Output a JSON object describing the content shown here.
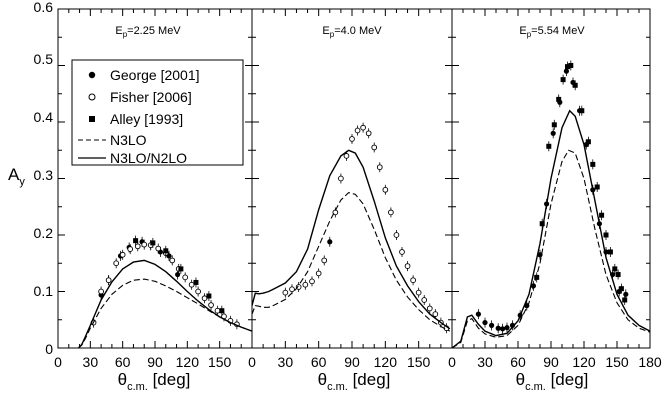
{
  "figure": {
    "ylabel_main": "A",
    "ylabel_sub": "y",
    "xlabel_main": "θ",
    "xlabel_sub": "c.m.",
    "xlabel_unit": " [deg]",
    "y_ticks": [
      "0",
      "0.1",
      "0.2",
      "0.3",
      "0.4",
      "0.5",
      "0.6"
    ],
    "legend": [
      {
        "label": "George [2001]",
        "marker": "filled-circle"
      },
      {
        "label": "Fisher [2006]",
        "marker": "open-circle"
      },
      {
        "label": "Alley [1993]",
        "marker": "filled-square"
      },
      {
        "label": "N3LO",
        "marker": "dashed-line"
      },
      {
        "label": "N3LO/N2LO",
        "marker": "solid-line"
      }
    ]
  },
  "chart_data": [
    {
      "type": "scatter+line",
      "title_main": "E",
      "title_sub": "p",
      "title_rest": "=2.25 MeV",
      "xlim": [
        0,
        180
      ],
      "ylim": [
        0,
        0.6
      ],
      "x_ticks": [
        "0",
        "30",
        "60",
        "90",
        "120",
        "150"
      ],
      "series": [
        {
          "name": "George [2001]",
          "marker": "filled-circle",
          "points": [
            [
              40,
              0.094
            ],
            [
              47,
              0.12
            ],
            [
              58,
              0.163
            ],
            [
              66,
              0.178
            ],
            [
              78,
              0.188
            ],
            [
              86,
              0.182
            ],
            [
              95,
              0.17
            ],
            [
              103,
              0.163
            ],
            [
              111,
              0.13
            ]
          ]
        },
        {
          "name": "Fisher [2006]",
          "marker": "open-circle",
          "points": [
            [
              33,
              0.045
            ],
            [
              40,
              0.1
            ],
            [
              47,
              0.12
            ],
            [
              54,
              0.15
            ],
            [
              60,
              0.165
            ],
            [
              67,
              0.175
            ],
            [
              74,
              0.18
            ],
            [
              80,
              0.183
            ],
            [
              86,
              0.182
            ],
            [
              93,
              0.176
            ],
            [
              100,
              0.168
            ],
            [
              106,
              0.155
            ],
            [
              112,
              0.14
            ],
            [
              118,
              0.125
            ],
            [
              124,
              0.112
            ],
            [
              130,
              0.1
            ],
            [
              136,
              0.088
            ],
            [
              142,
              0.076
            ],
            [
              148,
              0.066
            ],
            [
              154,
              0.056
            ],
            [
              160,
              0.048
            ],
            [
              166,
              0.042
            ]
          ]
        },
        {
          "name": "Alley [1993]",
          "marker": "filled-square",
          "points": [
            [
              72,
              0.19
            ],
            [
              88,
              0.186
            ],
            [
              100,
              0.172
            ],
            [
              114,
              0.14
            ],
            [
              128,
              0.116
            ],
            [
              140,
              0.092
            ],
            [
              152,
              0.066
            ]
          ]
        },
        {
          "name": "N3LO",
          "style": "dashed",
          "points": [
            [
              19,
              0
            ],
            [
              22,
              0.005
            ],
            [
              25,
              0.015
            ],
            [
              30,
              0.035
            ],
            [
              40,
              0.07
            ],
            [
              50,
              0.095
            ],
            [
              60,
              0.111
            ],
            [
              70,
              0.12
            ],
            [
              80,
              0.122
            ],
            [
              90,
              0.118
            ],
            [
              100,
              0.11
            ],
            [
              110,
              0.1
            ],
            [
              120,
              0.089
            ],
            [
              130,
              0.078
            ],
            [
              140,
              0.066
            ],
            [
              150,
              0.055
            ],
            [
              160,
              0.045
            ],
            [
              170,
              0.037
            ],
            [
              180,
              0.03
            ]
          ]
        },
        {
          "name": "N3LO/N2LO",
          "style": "solid",
          "points": [
            [
              19,
              0
            ],
            [
              22,
              0.006
            ],
            [
              25,
              0.018
            ],
            [
              30,
              0.04
            ],
            [
              40,
              0.085
            ],
            [
              50,
              0.117
            ],
            [
              60,
              0.14
            ],
            [
              70,
              0.152
            ],
            [
              80,
              0.155
            ],
            [
              90,
              0.148
            ],
            [
              100,
              0.135
            ],
            [
              110,
              0.118
            ],
            [
              120,
              0.1
            ],
            [
              130,
              0.083
            ],
            [
              140,
              0.068
            ],
            [
              150,
              0.055
            ],
            [
              160,
              0.045
            ],
            [
              170,
              0.037
            ],
            [
              180,
              0.03
            ]
          ]
        }
      ]
    },
    {
      "type": "scatter+line",
      "title_main": "E",
      "title_sub": "p",
      "title_rest": "=4.0 MeV",
      "xlim": [
        0,
        180
      ],
      "ylim": [
        0,
        0.6
      ],
      "x_ticks": [
        "0",
        "30",
        "60",
        "90",
        "120",
        "150"
      ],
      "series": [
        {
          "name": "George [2001]",
          "marker": "filled-circle",
          "points": [
            [
              70,
              0.188
            ]
          ]
        },
        {
          "name": "Fisher [2006]",
          "marker": "open-circle",
          "points": [
            [
              30,
              0.098
            ],
            [
              36,
              0.104
            ],
            [
              42,
              0.108
            ],
            [
              48,
              0.112
            ],
            [
              54,
              0.118
            ],
            [
              60,
              0.132
            ],
            [
              65,
              0.155
            ],
            [
              75,
              0.24
            ],
            [
              80,
              0.3
            ],
            [
              85,
              0.34
            ],
            [
              90,
              0.37
            ],
            [
              95,
              0.385
            ],
            [
              100,
              0.39
            ],
            [
              105,
              0.38
            ],
            [
              110,
              0.355
            ],
            [
              115,
              0.32
            ],
            [
              120,
              0.28
            ],
            [
              125,
              0.24
            ],
            [
              130,
              0.2
            ],
            [
              135,
              0.17
            ],
            [
              140,
              0.145
            ],
            [
              145,
              0.12
            ],
            [
              150,
              0.098
            ],
            [
              155,
              0.085
            ],
            [
              160,
              0.07
            ],
            [
              165,
              0.06
            ],
            [
              170,
              0.045
            ],
            [
              175,
              0.035
            ]
          ]
        },
        {
          "name": "N3LO",
          "style": "dashed",
          "points": [
            [
              0,
              0.06
            ],
            [
              3,
              0.075
            ],
            [
              6,
              0.074
            ],
            [
              10,
              0.072
            ],
            [
              15,
              0.072
            ],
            [
              20,
              0.076
            ],
            [
              30,
              0.086
            ],
            [
              40,
              0.105
            ],
            [
              50,
              0.135
            ],
            [
              60,
              0.18
            ],
            [
              70,
              0.225
            ],
            [
              80,
              0.262
            ],
            [
              87,
              0.275
            ],
            [
              93,
              0.272
            ],
            [
              100,
              0.255
            ],
            [
              110,
              0.21
            ],
            [
              120,
              0.16
            ],
            [
              130,
              0.12
            ],
            [
              140,
              0.09
            ],
            [
              150,
              0.068
            ],
            [
              160,
              0.05
            ],
            [
              170,
              0.038
            ],
            [
              178,
              0.03
            ]
          ]
        },
        {
          "name": "N3LO/N2LO",
          "style": "solid",
          "points": [
            [
              0,
              0.075
            ],
            [
              3,
              0.097
            ],
            [
              6,
              0.096
            ],
            [
              10,
              0.097
            ],
            [
              15,
              0.1
            ],
            [
              20,
              0.105
            ],
            [
              30,
              0.115
            ],
            [
              40,
              0.135
            ],
            [
              50,
              0.175
            ],
            [
              60,
              0.245
            ],
            [
              70,
              0.305
            ],
            [
              80,
              0.34
            ],
            [
              87,
              0.35
            ],
            [
              93,
              0.345
            ],
            [
              100,
              0.32
            ],
            [
              110,
              0.26
            ],
            [
              120,
              0.195
            ],
            [
              130,
              0.145
            ],
            [
              140,
              0.11
            ],
            [
              150,
              0.082
            ],
            [
              160,
              0.06
            ],
            [
              170,
              0.045
            ],
            [
              178,
              0.034
            ]
          ]
        }
      ]
    },
    {
      "type": "scatter+line",
      "title_main": "E",
      "title_sub": "p",
      "title_rest": "=5.54 MeV",
      "xlim": [
        0,
        180
      ],
      "ylim": [
        0,
        0.6
      ],
      "x_ticks": [
        "0",
        "30",
        "60",
        "90",
        "120",
        "150",
        "180"
      ],
      "series": [
        {
          "name": "George [2001]",
          "marker": "filled-circle",
          "points": [
            [
              24,
              0.06
            ],
            [
              30,
              0.045
            ],
            [
              36,
              0.04
            ],
            [
              42,
              0.035
            ],
            [
              46,
              0.034
            ],
            [
              50,
              0.036
            ],
            [
              55,
              0.04
            ],
            [
              62,
              0.058
            ],
            [
              68,
              0.075
            ],
            [
              74,
              0.11
            ],
            [
              80,
              0.165
            ],
            [
              86,
              0.255
            ],
            [
              92,
              0.38
            ],
            [
              98,
              0.435
            ],
            [
              104,
              0.49
            ],
            [
              110,
              0.47
            ],
            [
              116,
              0.42
            ],
            [
              122,
              0.36
            ],
            [
              128,
              0.28
            ],
            [
              134,
              0.22
            ],
            [
              140,
              0.17
            ],
            [
              146,
              0.13
            ],
            [
              152,
              0.1
            ],
            [
              158,
              0.095
            ]
          ]
        },
        {
          "name": "Alley [1993]",
          "marker": "filled-square",
          "points": [
            [
              77,
              0.125
            ],
            [
              82,
              0.22
            ],
            [
              88,
              0.357
            ],
            [
              93,
              0.395
            ],
            [
              97,
              0.44
            ],
            [
              101,
              0.475
            ],
            [
              105,
              0.498
            ],
            [
              108,
              0.5
            ],
            [
              112,
              0.465
            ],
            [
              118,
              0.42
            ],
            [
              124,
              0.365
            ],
            [
              128,
              0.325
            ],
            [
              132,
              0.285
            ],
            [
              136,
              0.235
            ],
            [
              140,
              0.2
            ],
            [
              144,
              0.17
            ],
            [
              148,
              0.14
            ],
            [
              151,
              0.13
            ],
            [
              154,
              0.105
            ],
            [
              157,
              0.085
            ]
          ]
        },
        {
          "name": "N3LO",
          "style": "dashed",
          "points": [
            [
              0,
              0
            ],
            [
              8,
              0.01
            ],
            [
              14,
              0.048
            ],
            [
              18,
              0.052
            ],
            [
              24,
              0.035
            ],
            [
              30,
              0.025
            ],
            [
              40,
              0.019
            ],
            [
              50,
              0.022
            ],
            [
              60,
              0.04
            ],
            [
              70,
              0.08
            ],
            [
              80,
              0.15
            ],
            [
              90,
              0.255
            ],
            [
              100,
              0.33
            ],
            [
              106,
              0.35
            ],
            [
              112,
              0.345
            ],
            [
              120,
              0.3
            ],
            [
              130,
              0.21
            ],
            [
              140,
              0.13
            ],
            [
              150,
              0.08
            ],
            [
              160,
              0.05
            ],
            [
              170,
              0.035
            ],
            [
              180,
              0.028
            ]
          ]
        },
        {
          "name": "N3LO/N2LO",
          "style": "solid",
          "points": [
            [
              0,
              0
            ],
            [
              8,
              0.012
            ],
            [
              14,
              0.055
            ],
            [
              18,
              0.058
            ],
            [
              24,
              0.042
            ],
            [
              30,
              0.03
            ],
            [
              40,
              0.022
            ],
            [
              50,
              0.026
            ],
            [
              60,
              0.048
            ],
            [
              70,
              0.095
            ],
            [
              80,
              0.185
            ],
            [
              90,
              0.3
            ],
            [
              100,
              0.39
            ],
            [
              107,
              0.42
            ],
            [
              112,
              0.41
            ],
            [
              120,
              0.36
            ],
            [
              130,
              0.26
            ],
            [
              140,
              0.16
            ],
            [
              150,
              0.095
            ],
            [
              160,
              0.058
            ],
            [
              170,
              0.04
            ],
            [
              180,
              0.03
            ]
          ]
        }
      ]
    }
  ]
}
